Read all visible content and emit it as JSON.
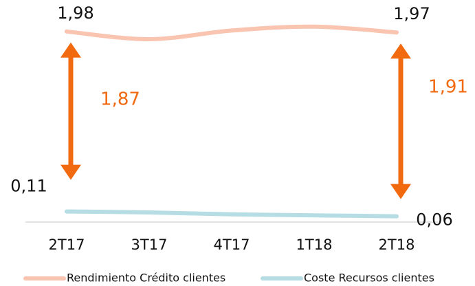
{
  "chart_data": {
    "type": "line",
    "categories": [
      "2T17",
      "3T17",
      "4T17",
      "1T18",
      "2T18"
    ],
    "series": [
      {
        "name": "Rendimiento Crédito clientes",
        "color": "#f9c4b0",
        "values": [
          1.98,
          1.9,
          1.99,
          2.03,
          1.97
        ],
        "value_labels": [
          "1,98",
          null,
          null,
          null,
          "1,97"
        ]
      },
      {
        "name": "Coste Recursos clientes",
        "color": "#b5dde3",
        "values": [
          0.11,
          0.1,
          0.08,
          0.07,
          0.06
        ],
        "value_labels": [
          "0,11",
          null,
          null,
          null,
          "0,06"
        ]
      }
    ],
    "annotations": [
      {
        "label": "1,87",
        "color": "#f26a10"
      },
      {
        "label": "1,91",
        "color": "#f26a10"
      }
    ],
    "ylim": [
      0,
      2.2
    ],
    "legend": "bottom"
  }
}
